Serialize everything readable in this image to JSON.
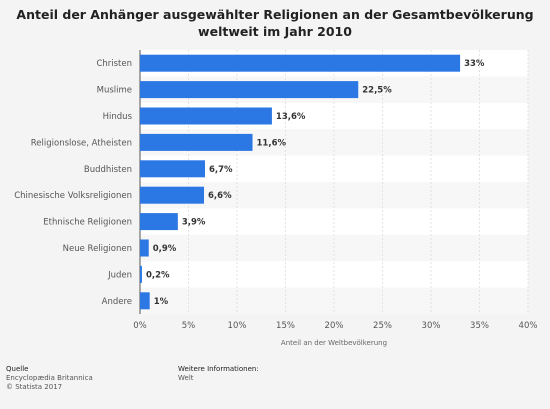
{
  "chart_data": {
    "type": "bar",
    "orientation": "horizontal",
    "title": [
      "Anteil der Anhänger ausgewählter Religionen an der Gesamtbevölkerung",
      "weltweit im Jahr 2010"
    ],
    "categories": [
      "Christen",
      "Muslime",
      "Hindus",
      "Religionslose, Atheisten",
      "Buddhisten",
      "Chinesische Volksreligionen",
      "Ethnische Religionen",
      "Neue Religionen",
      "Juden",
      "Andere"
    ],
    "values": [
      33,
      22.5,
      13.6,
      11.6,
      6.7,
      6.6,
      3.9,
      0.9,
      0.2,
      1
    ],
    "value_labels": [
      "33%",
      "22,5%",
      "13,6%",
      "11,6%",
      "6,7%",
      "6,6%",
      "3,9%",
      "0,9%",
      "0,2%",
      "1%"
    ],
    "xlim": [
      0,
      40
    ],
    "xticks": [
      0,
      5,
      10,
      15,
      20,
      25,
      30,
      35,
      40
    ],
    "xtick_labels": [
      "0%",
      "5%",
      "10%",
      "15%",
      "20%",
      "25%",
      "30%",
      "35%",
      "40%"
    ],
    "xlabel": "Anteil an der Weltbevölkerung",
    "bar_color": "#2b78e4",
    "grid": true
  },
  "footer": {
    "source_head": "Quelle",
    "source_line1": "Encyclopædia Britannica",
    "source_line2": "© Statista 2017",
    "info_head": "Weitere Informationen:",
    "info_line1": "Welt"
  }
}
